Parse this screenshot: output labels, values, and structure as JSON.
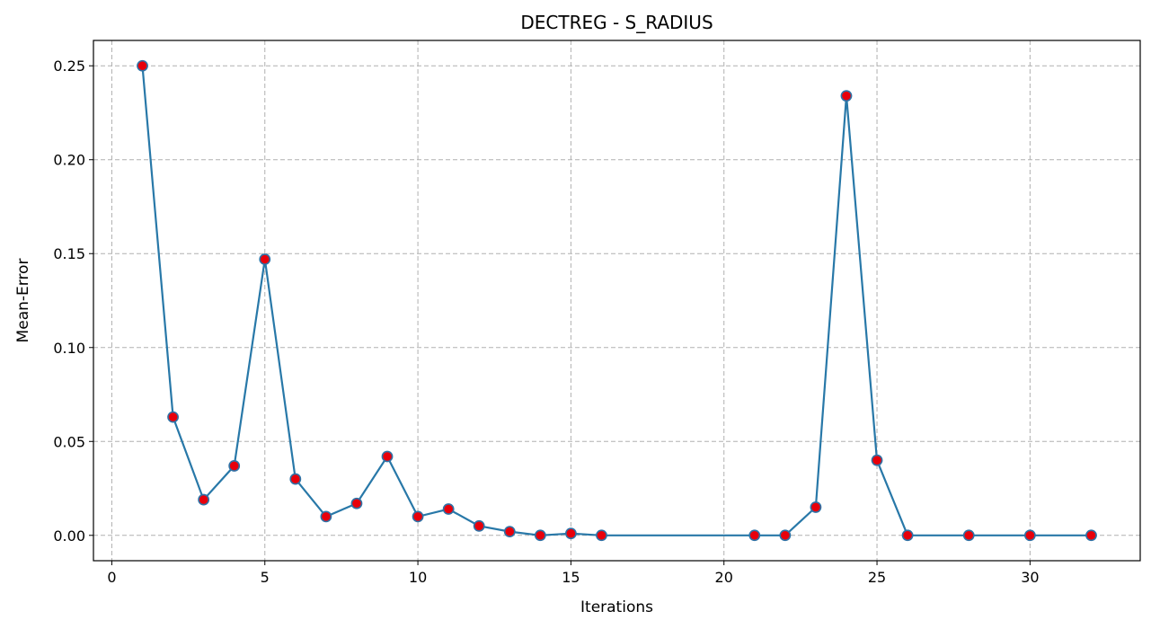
{
  "chart_data": {
    "type": "line",
    "title": "DECTREG - S_RADIUS",
    "xlabel": "Iterations",
    "ylabel": "Mean-Error",
    "xlim": [
      -0.6,
      33.6
    ],
    "ylim": [
      -0.0135,
      0.2635
    ],
    "xticks": [
      0,
      5,
      10,
      15,
      20,
      25,
      30
    ],
    "xtick_labels": [
      "0",
      "5",
      "10",
      "15",
      "20",
      "25",
      "30"
    ],
    "yticks": [
      0.0,
      0.05,
      0.1,
      0.15,
      0.2,
      0.25
    ],
    "ytick_labels": [
      "0.00",
      "0.05",
      "0.10",
      "0.15",
      "0.20",
      "0.25"
    ],
    "grid": true,
    "series": [
      {
        "x": [
          1,
          2,
          3,
          4,
          5,
          6,
          7,
          8,
          9,
          10,
          11,
          12,
          13,
          14,
          15,
          16,
          21,
          22,
          23,
          24,
          25,
          26,
          28,
          30,
          32
        ],
        "values": [
          0.25,
          0.063,
          0.019,
          0.037,
          0.147,
          0.03,
          0.01,
          0.017,
          0.042,
          0.01,
          0.014,
          0.005,
          0.002,
          0.0,
          0.001,
          0.0,
          0.0,
          0.0,
          0.015,
          0.234,
          0.04,
          0.0,
          0.0,
          0.0,
          0.0
        ],
        "line_color": "#2878a8",
        "marker_fill": "#e8000b",
        "marker_edge": "#2f72a6"
      }
    ]
  }
}
